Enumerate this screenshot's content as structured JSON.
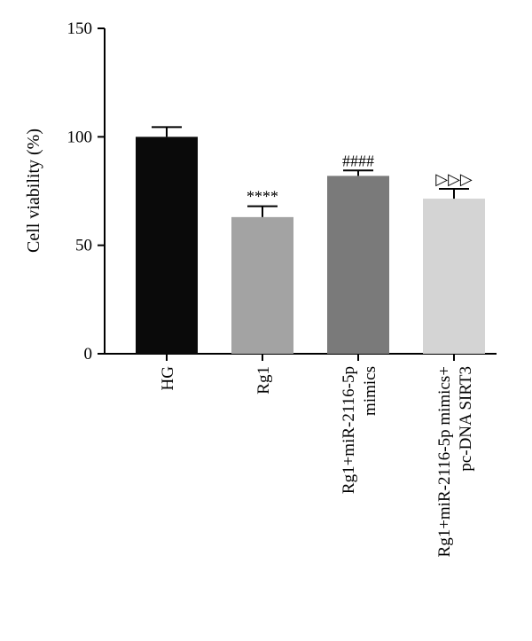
{
  "chart_data": {
    "type": "bar",
    "ylabel": "Cell viability (%)",
    "ylim": [
      0,
      150
    ],
    "yticks": [
      "0",
      "50",
      "100",
      "150"
    ],
    "grid": false,
    "categories": [
      [
        "HG"
      ],
      [
        "Rg1"
      ],
      [
        "Rg1+miR-2116-5p",
        "mimics"
      ],
      [
        "Rg1+miR-2116-5p mimics+",
        "pc-DNA SIRT3"
      ]
    ],
    "values": [
      100,
      63,
      82,
      71.5
    ],
    "errors": [
      4.5,
      5,
      2.5,
      4.5
    ],
    "colors": [
      "#0a0a0a",
      "#a3a3a3",
      "#7a7a7a",
      "#d4d4d4"
    ],
    "annotations": [
      "",
      "****",
      "####",
      "▷▷▷"
    ]
  }
}
